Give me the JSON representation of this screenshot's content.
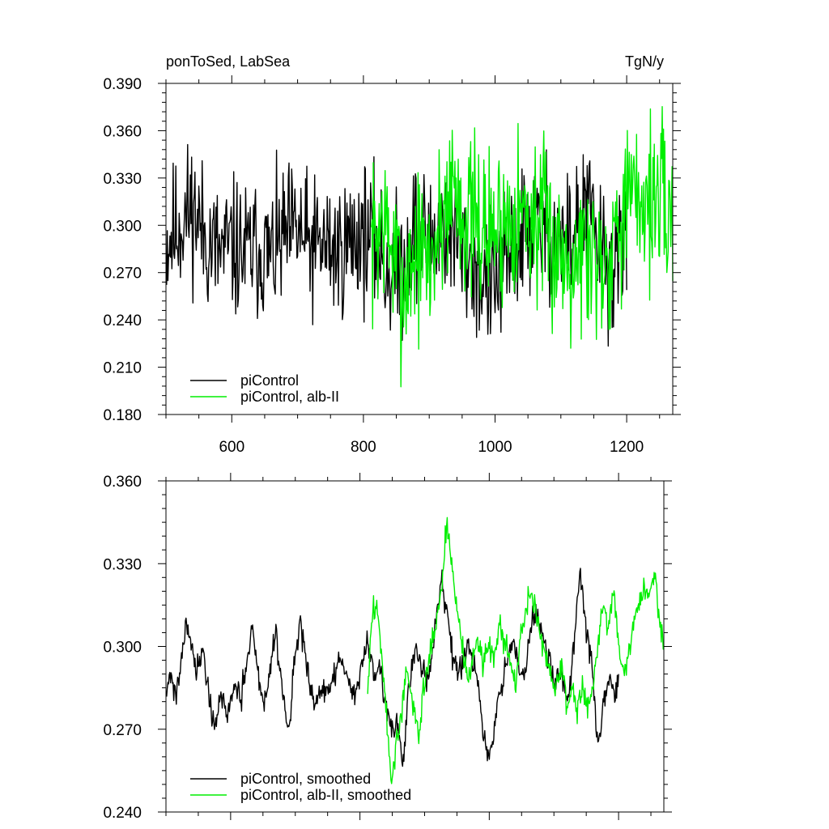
{
  "chart_data": [
    {
      "type": "line",
      "title_left": "ponToSed, LabSea",
      "title_right": "TgN/y",
      "xlim": [
        500,
        1270
      ],
      "ylim": [
        0.18,
        0.39
      ],
      "x_ticks": [
        600,
        800,
        1000,
        1200
      ],
      "x_tick_labels": [
        "600",
        "800",
        "1000",
        "1200"
      ],
      "y_ticks": [
        0.18,
        0.21,
        0.24,
        0.27,
        0.3,
        0.33,
        0.36,
        0.39
      ],
      "y_tick_labels": [
        "0.180",
        "0.210",
        "0.240",
        "0.270",
        "0.300",
        "0.330",
        "0.360",
        "0.390"
      ],
      "legend_position": "bottom-left",
      "series": [
        {
          "name": "piControl",
          "color": "#000000",
          "x_range": [
            501,
            1200
          ],
          "mean": 0.289,
          "noise": 0.022,
          "seed": 11,
          "anchors": [
            [
              501,
              0.29
            ],
            [
              520,
              0.3
            ],
            [
              540,
              0.312
            ],
            [
              560,
              0.292
            ],
            [
              580,
              0.282
            ],
            [
              600,
              0.286
            ],
            [
              620,
              0.282
            ],
            [
              640,
              0.285
            ],
            [
              660,
              0.28
            ],
            [
              680,
              0.292
            ],
            [
              700,
              0.296
            ],
            [
              720,
              0.285
            ],
            [
              740,
              0.288
            ],
            [
              760,
              0.283
            ],
            [
              780,
              0.29
            ],
            [
              800,
              0.296
            ],
            [
              820,
              0.286
            ],
            [
              840,
              0.27
            ],
            [
              860,
              0.275
            ],
            [
              880,
              0.3
            ],
            [
              900,
              0.288
            ],
            [
              920,
              0.3
            ],
            [
              940,
              0.292
            ],
            [
              960,
              0.278
            ],
            [
              980,
              0.268
            ],
            [
              1000,
              0.262
            ],
            [
              1020,
              0.276
            ],
            [
              1040,
              0.292
            ],
            [
              1060,
              0.3
            ],
            [
              1080,
              0.296
            ],
            [
              1100,
              0.29
            ],
            [
              1120,
              0.292
            ],
            [
              1140,
              0.312
            ],
            [
              1160,
              0.285
            ],
            [
              1180,
              0.27
            ],
            [
              1200,
              0.288
            ]
          ]
        },
        {
          "name": "piControl, alb-II",
          "color": "#00ee00",
          "x_range": [
            812,
            1270
          ],
          "mean": 0.3,
          "noise": 0.026,
          "seed": 7,
          "anchors": [
            [
              812,
              0.285
            ],
            [
              830,
              0.305
            ],
            [
              845,
              0.28
            ],
            [
              860,
              0.26
            ],
            [
              880,
              0.285
            ],
            [
              900,
              0.275
            ],
            [
              920,
              0.305
            ],
            [
              935,
              0.33
            ],
            [
              950,
              0.31
            ],
            [
              970,
              0.3
            ],
            [
              990,
              0.296
            ],
            [
              1010,
              0.3
            ],
            [
              1030,
              0.312
            ],
            [
              1050,
              0.305
            ],
            [
              1070,
              0.3
            ],
            [
              1090,
              0.285
            ],
            [
              1110,
              0.282
            ],
            [
              1130,
              0.285
            ],
            [
              1150,
              0.282
            ],
            [
              1170,
              0.28
            ],
            [
              1190,
              0.31
            ],
            [
              1210,
              0.315
            ],
            [
              1230,
              0.318
            ],
            [
              1250,
              0.316
            ],
            [
              1270,
              0.3
            ]
          ]
        }
      ]
    },
    {
      "type": "line",
      "xlim": [
        500,
        1270
      ],
      "ylim": [
        0.24,
        0.36
      ],
      "x_ticks": [
        600,
        800,
        1000,
        1200
      ],
      "y_ticks": [
        0.24,
        0.27,
        0.3,
        0.33,
        0.36
      ],
      "y_tick_labels": [
        "0.240",
        "0.270",
        "0.300",
        "0.330",
        "0.360"
      ],
      "legend_position": "bottom-left",
      "series": [
        {
          "name": "piControl, smoothed",
          "color": "#000000",
          "x_range": [
            501,
            1200
          ],
          "noise": 0.004,
          "seed": 21,
          "anchors": [
            [
              501,
              0.286
            ],
            [
              508,
              0.29
            ],
            [
              515,
              0.282
            ],
            [
              522,
              0.292
            ],
            [
              530,
              0.308
            ],
            [
              540,
              0.302
            ],
            [
              548,
              0.29
            ],
            [
              556,
              0.3
            ],
            [
              566,
              0.284
            ],
            [
              575,
              0.27
            ],
            [
              585,
              0.282
            ],
            [
              595,
              0.275
            ],
            [
              605,
              0.286
            ],
            [
              615,
              0.28
            ],
            [
              625,
              0.292
            ],
            [
              633,
              0.308
            ],
            [
              643,
              0.29
            ],
            [
              653,
              0.278
            ],
            [
              663,
              0.296
            ],
            [
              670,
              0.306
            ],
            [
              680,
              0.284
            ],
            [
              690,
              0.27
            ],
            [
              700,
              0.296
            ],
            [
              708,
              0.31
            ],
            [
              718,
              0.292
            ],
            [
              728,
              0.278
            ],
            [
              738,
              0.284
            ],
            [
              748,
              0.282
            ],
            [
              760,
              0.29
            ],
            [
              770,
              0.296
            ],
            [
              780,
              0.288
            ],
            [
              790,
              0.282
            ],
            [
              800,
              0.29
            ],
            [
              812,
              0.302
            ],
            [
              822,
              0.29
            ],
            [
              832,
              0.292
            ],
            [
              842,
              0.278
            ],
            [
              850,
              0.268
            ],
            [
              858,
              0.272
            ],
            [
              866,
              0.255
            ],
            [
              876,
              0.286
            ],
            [
              886,
              0.3
            ],
            [
              896,
              0.292
            ],
            [
              906,
              0.288
            ],
            [
              916,
              0.306
            ],
            [
              926,
              0.324
            ],
            [
              936,
              0.312
            ],
            [
              946,
              0.292
            ],
            [
              956,
              0.29
            ],
            [
              966,
              0.3
            ],
            [
              976,
              0.294
            ],
            [
              986,
              0.28
            ],
            [
              994,
              0.262
            ],
            [
              1002,
              0.26
            ],
            [
              1012,
              0.278
            ],
            [
              1022,
              0.288
            ],
            [
              1032,
              0.3
            ],
            [
              1042,
              0.298
            ],
            [
              1052,
              0.286
            ],
            [
              1062,
              0.304
            ],
            [
              1072,
              0.314
            ],
            [
              1082,
              0.305
            ],
            [
              1092,
              0.296
            ],
            [
              1102,
              0.286
            ],
            [
              1112,
              0.29
            ],
            [
              1122,
              0.28
            ],
            [
              1132,
              0.304
            ],
            [
              1140,
              0.328
            ],
            [
              1150,
              0.306
            ],
            [
              1160,
              0.292
            ],
            [
              1168,
              0.262
            ],
            [
              1176,
              0.276
            ],
            [
              1186,
              0.29
            ],
            [
              1194,
              0.282
            ],
            [
              1200,
              0.288
            ]
          ]
        },
        {
          "name": "piControl, alb-II, smoothed",
          "color": "#00ee00",
          "x_range": [
            812,
            1270
          ],
          "noise": 0.004,
          "seed": 3,
          "anchors": [
            [
              812,
              0.282
            ],
            [
              818,
              0.31
            ],
            [
              826,
              0.316
            ],
            [
              834,
              0.296
            ],
            [
              842,
              0.272
            ],
            [
              848,
              0.25
            ],
            [
              856,
              0.264
            ],
            [
              864,
              0.275
            ],
            [
              872,
              0.29
            ],
            [
              880,
              0.282
            ],
            [
              890,
              0.268
            ],
            [
              900,
              0.286
            ],
            [
              910,
              0.3
            ],
            [
              920,
              0.312
            ],
            [
              928,
              0.325
            ],
            [
              934,
              0.345
            ],
            [
              942,
              0.33
            ],
            [
              950,
              0.314
            ],
            [
              958,
              0.3
            ],
            [
              966,
              0.29
            ],
            [
              974,
              0.292
            ],
            [
              982,
              0.304
            ],
            [
              990,
              0.295
            ],
            [
              1000,
              0.3
            ],
            [
              1008,
              0.296
            ],
            [
              1016,
              0.312
            ],
            [
              1024,
              0.3
            ],
            [
              1032,
              0.296
            ],
            [
              1040,
              0.286
            ],
            [
              1048,
              0.302
            ],
            [
              1056,
              0.312
            ],
            [
              1064,
              0.32
            ],
            [
              1072,
              0.314
            ],
            [
              1080,
              0.302
            ],
            [
              1088,
              0.296
            ],
            [
              1096,
              0.29
            ],
            [
              1104,
              0.284
            ],
            [
              1112,
              0.294
            ],
            [
              1120,
              0.278
            ],
            [
              1128,
              0.286
            ],
            [
              1136,
              0.276
            ],
            [
              1144,
              0.288
            ],
            [
              1152,
              0.278
            ],
            [
              1160,
              0.284
            ],
            [
              1168,
              0.3
            ],
            [
              1176,
              0.316
            ],
            [
              1184,
              0.308
            ],
            [
              1192,
              0.32
            ],
            [
              1200,
              0.3
            ],
            [
              1208,
              0.29
            ],
            [
              1216,
              0.298
            ],
            [
              1224,
              0.31
            ],
            [
              1232,
              0.316
            ],
            [
              1240,
              0.322
            ],
            [
              1248,
              0.318
            ],
            [
              1256,
              0.326
            ],
            [
              1262,
              0.312
            ],
            [
              1270,
              0.3
            ]
          ]
        }
      ]
    }
  ]
}
